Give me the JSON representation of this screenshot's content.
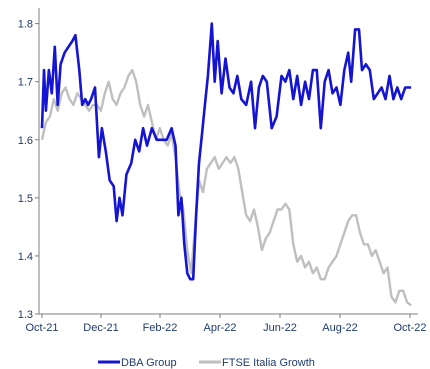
{
  "chart_data": {
    "type": "line",
    "x_ticks": [
      "Oct-21",
      "Dec-21",
      "Feb-22",
      "Apr-22",
      "Jun-22",
      "Aug-22",
      "Oct-22"
    ],
    "y_ticks": [
      "1.3",
      "1.4",
      "1.5",
      "1.6",
      "1.7",
      "1.8"
    ],
    "xlim": [
      "2021-10-01",
      "2022-10-15"
    ],
    "ylim": [
      1.3,
      1.82
    ],
    "grid": false,
    "legend_position": "bottom",
    "series": [
      {
        "name": "DBA Group",
        "color": "#1414d2",
        "points": [
          [
            "2021-10-01",
            1.62
          ],
          [
            "2021-10-03",
            1.72
          ],
          [
            "2021-10-05",
            1.65
          ],
          [
            "2021-10-08",
            1.72
          ],
          [
            "2021-10-11",
            1.68
          ],
          [
            "2021-10-14",
            1.76
          ],
          [
            "2021-10-17",
            1.66
          ],
          [
            "2021-10-20",
            1.73
          ],
          [
            "2021-10-24",
            1.75
          ],
          [
            "2021-10-28",
            1.76
          ],
          [
            "2021-11-01",
            1.77
          ],
          [
            "2021-11-04",
            1.78
          ],
          [
            "2021-11-08",
            1.72
          ],
          [
            "2021-11-11",
            1.66
          ],
          [
            "2021-11-14",
            1.67
          ],
          [
            "2021-11-17",
            1.66
          ],
          [
            "2021-11-20",
            1.67
          ],
          [
            "2021-11-24",
            1.69
          ],
          [
            "2021-11-28",
            1.57
          ],
          [
            "2021-12-01",
            1.62
          ],
          [
            "2021-12-05",
            1.58
          ],
          [
            "2021-12-09",
            1.53
          ],
          [
            "2021-12-13",
            1.52
          ],
          [
            "2021-12-16",
            1.46
          ],
          [
            "2021-12-19",
            1.5
          ],
          [
            "2021-12-22",
            1.47
          ],
          [
            "2021-12-26",
            1.54
          ],
          [
            "2021-12-31",
            1.56
          ],
          [
            "2022-01-04",
            1.6
          ],
          [
            "2022-01-08",
            1.58
          ],
          [
            "2022-01-12",
            1.62
          ],
          [
            "2022-01-16",
            1.59
          ],
          [
            "2022-01-21",
            1.62
          ],
          [
            "2022-01-26",
            1.6
          ],
          [
            "2022-01-31",
            1.6
          ],
          [
            "2022-02-05",
            1.6
          ],
          [
            "2022-02-10",
            1.62
          ],
          [
            "2022-02-14",
            1.59
          ],
          [
            "2022-02-17",
            1.47
          ],
          [
            "2022-02-20",
            1.5
          ],
          [
            "2022-02-23",
            1.42
          ],
          [
            "2022-02-26",
            1.37
          ],
          [
            "2022-03-01",
            1.36
          ],
          [
            "2022-03-04",
            1.36
          ],
          [
            "2022-03-07",
            1.47
          ],
          [
            "2022-03-10",
            1.56
          ],
          [
            "2022-03-13",
            1.61
          ],
          [
            "2022-03-16",
            1.66
          ],
          [
            "2022-03-19",
            1.71
          ],
          [
            "2022-03-23",
            1.8
          ],
          [
            "2022-03-26",
            1.7
          ],
          [
            "2022-03-29",
            1.77
          ],
          [
            "2022-04-02",
            1.68
          ],
          [
            "2022-04-06",
            1.74
          ],
          [
            "2022-04-10",
            1.69
          ],
          [
            "2022-04-14",
            1.68
          ],
          [
            "2022-04-18",
            1.71
          ],
          [
            "2022-04-22",
            1.67
          ],
          [
            "2022-04-27",
            1.66
          ],
          [
            "2022-05-02",
            1.7
          ],
          [
            "2022-05-06",
            1.62
          ],
          [
            "2022-05-10",
            1.69
          ],
          [
            "2022-05-14",
            1.71
          ],
          [
            "2022-05-18",
            1.7
          ],
          [
            "2022-05-23",
            1.62
          ],
          [
            "2022-05-28",
            1.64
          ],
          [
            "2022-06-02",
            1.71
          ],
          [
            "2022-06-06",
            1.7
          ],
          [
            "2022-06-10",
            1.72
          ],
          [
            "2022-06-14",
            1.67
          ],
          [
            "2022-06-18",
            1.71
          ],
          [
            "2022-06-22",
            1.66
          ],
          [
            "2022-06-26",
            1.7
          ],
          [
            "2022-06-30",
            1.67
          ],
          [
            "2022-07-04",
            1.72
          ],
          [
            "2022-07-08",
            1.72
          ],
          [
            "2022-07-12",
            1.62
          ],
          [
            "2022-07-16",
            1.7
          ],
          [
            "2022-07-20",
            1.72
          ],
          [
            "2022-07-24",
            1.68
          ],
          [
            "2022-07-28",
            1.69
          ],
          [
            "2022-08-01",
            1.66
          ],
          [
            "2022-08-05",
            1.72
          ],
          [
            "2022-08-09",
            1.75
          ],
          [
            "2022-08-12",
            1.7
          ],
          [
            "2022-08-16",
            1.79
          ],
          [
            "2022-08-20",
            1.79
          ],
          [
            "2022-08-23",
            1.72
          ],
          [
            "2022-08-27",
            1.73
          ],
          [
            "2022-08-31",
            1.72
          ],
          [
            "2022-09-04",
            1.67
          ],
          [
            "2022-09-08",
            1.68
          ],
          [
            "2022-09-12",
            1.69
          ],
          [
            "2022-09-16",
            1.67
          ],
          [
            "2022-09-20",
            1.71
          ],
          [
            "2022-09-24",
            1.67
          ],
          [
            "2022-09-28",
            1.69
          ],
          [
            "2022-10-02",
            1.67
          ],
          [
            "2022-10-06",
            1.69
          ],
          [
            "2022-10-12",
            1.69
          ]
        ]
      },
      {
        "name": "FTSE Italia Growth",
        "color": "#bfbfbf",
        "points": [
          [
            "2021-10-01",
            1.6
          ],
          [
            "2021-10-05",
            1.63
          ],
          [
            "2021-10-09",
            1.64
          ],
          [
            "2021-10-13",
            1.67
          ],
          [
            "2021-10-17",
            1.65
          ],
          [
            "2021-10-21",
            1.68
          ],
          [
            "2021-10-25",
            1.69
          ],
          [
            "2021-10-29",
            1.67
          ],
          [
            "2021-11-02",
            1.66
          ],
          [
            "2021-11-06",
            1.68
          ],
          [
            "2021-11-10",
            1.67
          ],
          [
            "2021-11-14",
            1.66
          ],
          [
            "2021-11-18",
            1.65
          ],
          [
            "2021-11-22",
            1.66
          ],
          [
            "2021-11-26",
            1.66
          ],
          [
            "2021-11-30",
            1.65
          ],
          [
            "2021-12-04",
            1.68
          ],
          [
            "2021-12-08",
            1.7
          ],
          [
            "2021-12-12",
            1.67
          ],
          [
            "2021-12-16",
            1.66
          ],
          [
            "2021-12-20",
            1.68
          ],
          [
            "2021-12-24",
            1.69
          ],
          [
            "2021-12-28",
            1.71
          ],
          [
            "2022-01-01",
            1.72
          ],
          [
            "2022-01-05",
            1.7
          ],
          [
            "2022-01-09",
            1.66
          ],
          [
            "2022-01-13",
            1.64
          ],
          [
            "2022-01-17",
            1.66
          ],
          [
            "2022-01-21",
            1.63
          ],
          [
            "2022-01-25",
            1.6
          ],
          [
            "2022-01-29",
            1.62
          ],
          [
            "2022-02-02",
            1.6
          ],
          [
            "2022-02-06",
            1.59
          ],
          [
            "2022-02-10",
            1.61
          ],
          [
            "2022-02-14",
            1.57
          ],
          [
            "2022-02-18",
            1.51
          ],
          [
            "2022-02-22",
            1.48
          ],
          [
            "2022-02-26",
            1.41
          ],
          [
            "2022-03-02",
            1.37
          ],
          [
            "2022-03-06",
            1.45
          ],
          [
            "2022-03-10",
            1.53
          ],
          [
            "2022-03-14",
            1.51
          ],
          [
            "2022-03-18",
            1.55
          ],
          [
            "2022-03-22",
            1.56
          ],
          [
            "2022-03-26",
            1.57
          ],
          [
            "2022-03-30",
            1.55
          ],
          [
            "2022-04-03",
            1.56
          ],
          [
            "2022-04-07",
            1.57
          ],
          [
            "2022-04-11",
            1.56
          ],
          [
            "2022-04-15",
            1.57
          ],
          [
            "2022-04-19",
            1.55
          ],
          [
            "2022-04-23",
            1.51
          ],
          [
            "2022-04-27",
            1.47
          ],
          [
            "2022-05-01",
            1.46
          ],
          [
            "2022-05-05",
            1.48
          ],
          [
            "2022-05-09",
            1.45
          ],
          [
            "2022-05-13",
            1.41
          ],
          [
            "2022-05-17",
            1.43
          ],
          [
            "2022-05-21",
            1.44
          ],
          [
            "2022-05-25",
            1.46
          ],
          [
            "2022-05-29",
            1.48
          ],
          [
            "2022-06-02",
            1.48
          ],
          [
            "2022-06-06",
            1.49
          ],
          [
            "2022-06-10",
            1.48
          ],
          [
            "2022-06-14",
            1.42
          ],
          [
            "2022-06-18",
            1.39
          ],
          [
            "2022-06-22",
            1.4
          ],
          [
            "2022-06-26",
            1.38
          ],
          [
            "2022-06-30",
            1.39
          ],
          [
            "2022-07-04",
            1.37
          ],
          [
            "2022-07-08",
            1.38
          ],
          [
            "2022-07-12",
            1.36
          ],
          [
            "2022-07-16",
            1.36
          ],
          [
            "2022-07-20",
            1.38
          ],
          [
            "2022-07-24",
            1.39
          ],
          [
            "2022-07-28",
            1.4
          ],
          [
            "2022-08-01",
            1.42
          ],
          [
            "2022-08-05",
            1.44
          ],
          [
            "2022-08-09",
            1.46
          ],
          [
            "2022-08-13",
            1.47
          ],
          [
            "2022-08-17",
            1.47
          ],
          [
            "2022-08-21",
            1.44
          ],
          [
            "2022-08-25",
            1.42
          ],
          [
            "2022-08-29",
            1.42
          ],
          [
            "2022-09-02",
            1.4
          ],
          [
            "2022-09-06",
            1.41
          ],
          [
            "2022-09-10",
            1.39
          ],
          [
            "2022-09-14",
            1.37
          ],
          [
            "2022-09-18",
            1.38
          ],
          [
            "2022-09-22",
            1.33
          ],
          [
            "2022-09-26",
            1.32
          ],
          [
            "2022-09-30",
            1.34
          ],
          [
            "2022-10-04",
            1.34
          ],
          [
            "2022-10-08",
            1.32
          ],
          [
            "2022-10-12",
            1.315
          ]
        ]
      }
    ]
  }
}
